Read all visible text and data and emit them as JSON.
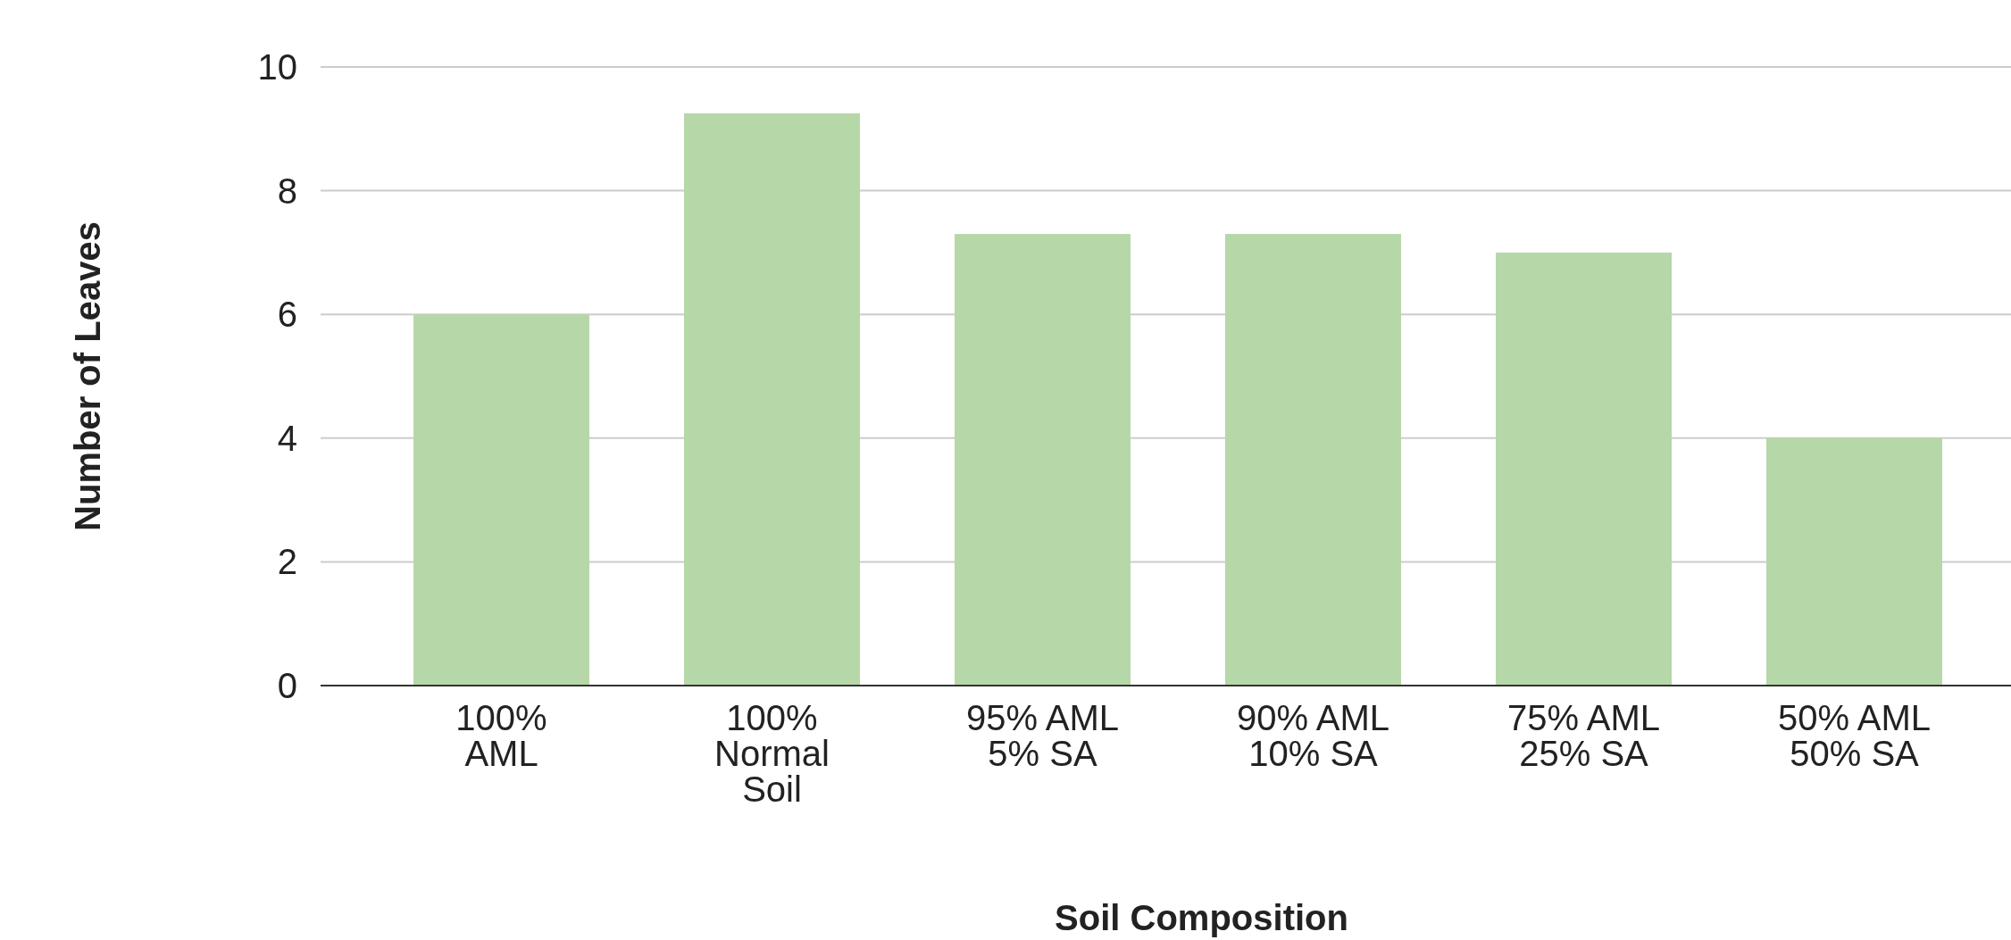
{
  "chart_data": {
    "type": "bar",
    "xlabel": "Soil Composition",
    "ylabel": "Number of Leaves",
    "categories": [
      "100%\nAML",
      "100%\nNormal\nSoil",
      "95% AML\n5% SA",
      "90% AML\n10% SA",
      "75% AML\n25% SA",
      "50% AML\n50% SA"
    ],
    "values": [
      6,
      9.25,
      7.3,
      7.3,
      7,
      4
    ],
    "color": "#b6d7a8",
    "ylim": [
      0,
      10
    ],
    "yticks": [
      0,
      2,
      4,
      6,
      8,
      10
    ],
    "grid": "y"
  }
}
